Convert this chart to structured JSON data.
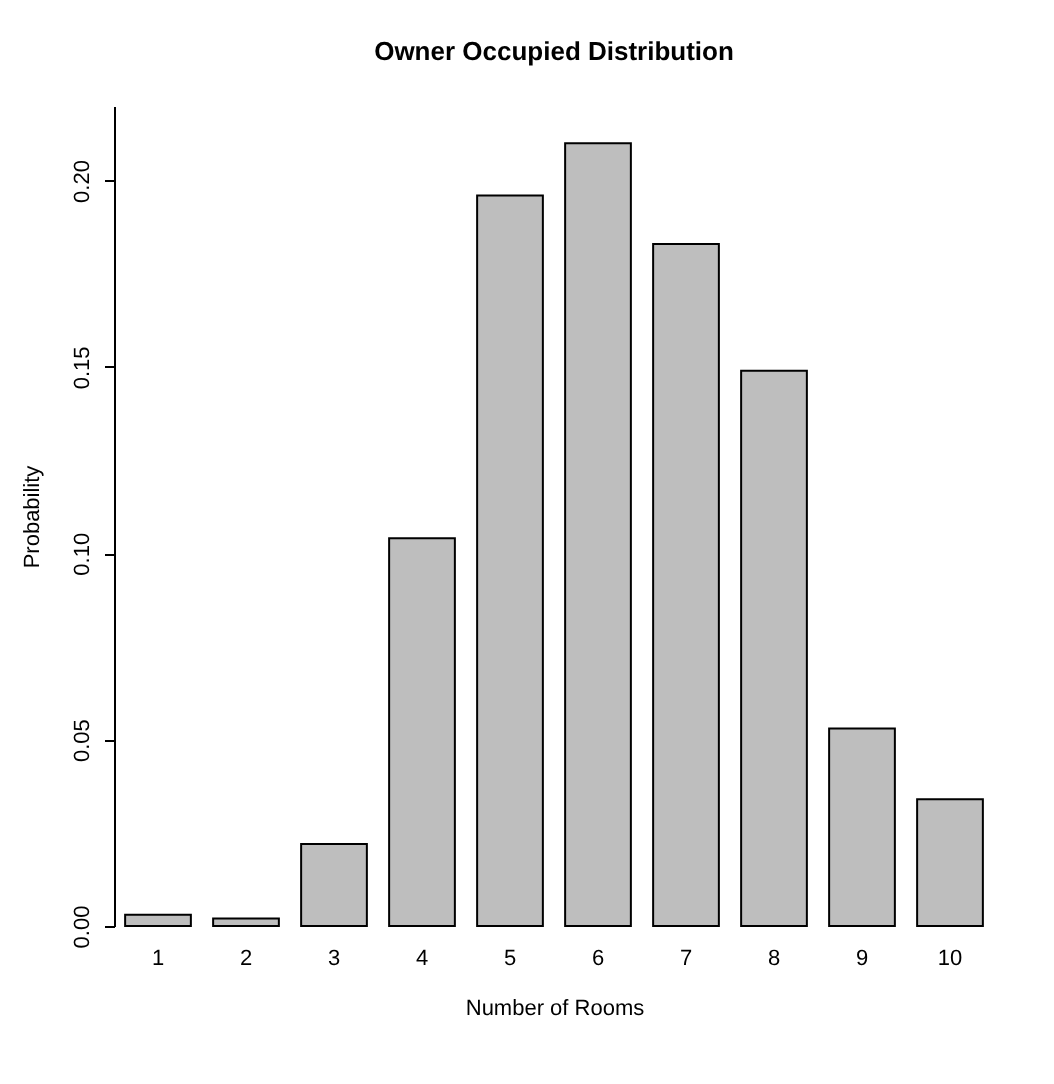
{
  "chart_data": {
    "type": "bar",
    "title": "Owner Occupied Distribution",
    "xlabel": "Number of Rooms",
    "ylabel": "Probability",
    "categories": [
      "1",
      "2",
      "3",
      "4",
      "5",
      "6",
      "7",
      "8",
      "9",
      "10"
    ],
    "values": [
      0.003,
      0.002,
      0.022,
      0.104,
      0.196,
      0.21,
      0.183,
      0.149,
      0.053,
      0.034
    ],
    "color": "#bebebe",
    "ylim": [
      0,
      0.22
    ],
    "yticks": [
      {
        "value": 0,
        "label": "0.00"
      },
      {
        "value": 0.05,
        "label": "0.05"
      },
      {
        "value": 0.1,
        "label": "0.10"
      },
      {
        "value": 0.15,
        "label": "0.15"
      },
      {
        "value": 0.2,
        "label": "0.20"
      }
    ],
    "grid": false
  }
}
